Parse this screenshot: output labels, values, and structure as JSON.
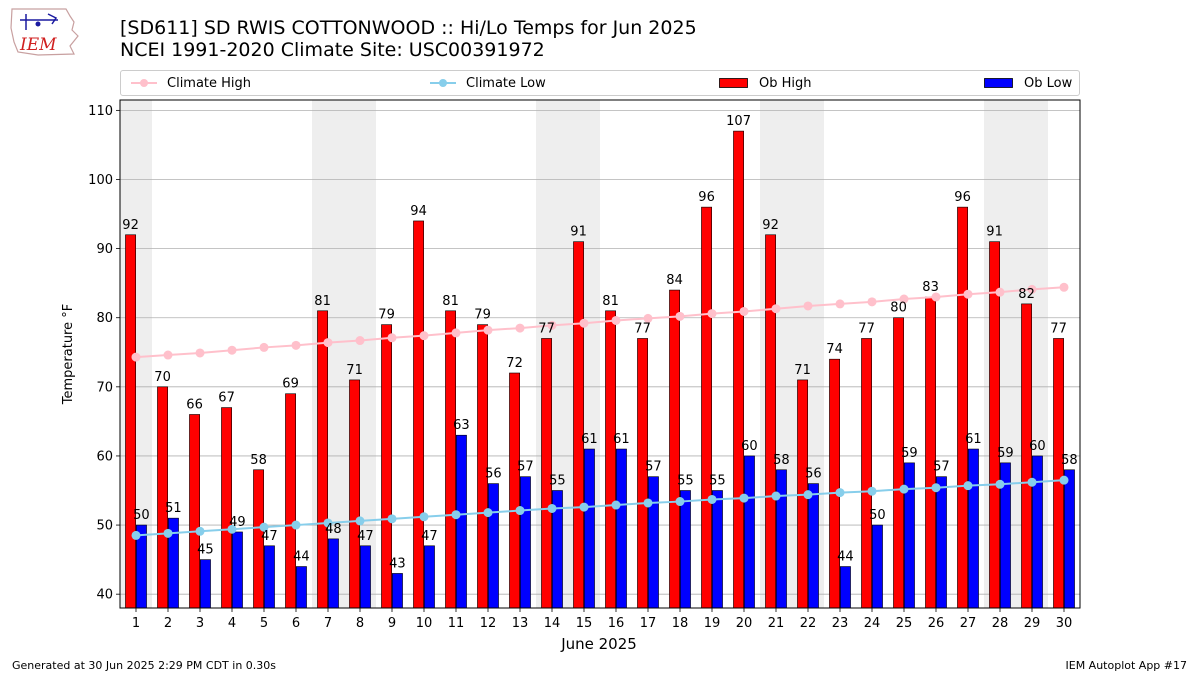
{
  "header": {
    "logo_text": "IEM",
    "title_line1": "[SD611] SD RWIS COTTONWOOD :: Hi/Lo Temps for Jun 2025",
    "title_line2": "NCEI 1991-2020 Climate Site: USC00391972"
  },
  "legend": {
    "items": [
      {
        "label": "Climate High",
        "kind": "line",
        "color": "#ffc0cb"
      },
      {
        "label": "Climate Low",
        "kind": "line",
        "color": "#87ceeb"
      },
      {
        "label": "Ob High",
        "kind": "bar",
        "color": "#ff0000"
      },
      {
        "label": "Ob Low",
        "kind": "bar",
        "color": "#0000ff"
      }
    ]
  },
  "footer": {
    "generated": "Generated at 30 Jun 2025 2:29 PM CDT in 0.30s",
    "app": "IEM Autoplot App #17"
  },
  "chart_data": {
    "type": "bar",
    "xlabel": "June 2025",
    "ylabel": "Temperature °F",
    "ylim": [
      38,
      111.5
    ],
    "yticks": [
      40,
      50,
      60,
      70,
      80,
      90,
      100,
      110
    ],
    "grid": "horizontal",
    "legend_position": "top",
    "weekend_shading": [
      [
        1,
        1
      ],
      [
        7,
        8
      ],
      [
        14,
        15
      ],
      [
        21,
        22
      ],
      [
        28,
        29
      ]
    ],
    "categories": [
      "1",
      "2",
      "3",
      "4",
      "5",
      "6",
      "7",
      "8",
      "9",
      "10",
      "11",
      "12",
      "13",
      "14",
      "15",
      "16",
      "17",
      "18",
      "19",
      "20",
      "21",
      "22",
      "23",
      "24",
      "25",
      "26",
      "27",
      "28",
      "29",
      "30"
    ],
    "series": [
      {
        "name": "Ob High",
        "kind": "bar",
        "color": "#ff0000",
        "values": [
          92,
          70,
          66,
          67,
          58,
          69,
          81,
          71,
          79,
          94,
          81,
          79,
          72,
          77,
          91,
          81,
          77,
          84,
          96,
          107,
          92,
          71,
          74,
          77,
          80,
          83,
          96,
          91,
          82,
          77
        ]
      },
      {
        "name": "Ob Low",
        "kind": "bar",
        "color": "#0000ff",
        "values": [
          50,
          51,
          45,
          49,
          47,
          44,
          48,
          47,
          43,
          47,
          63,
          56,
          57,
          55,
          61,
          61,
          57,
          55,
          55,
          60,
          58,
          56,
          44,
          50,
          59,
          57,
          61,
          59,
          60,
          58
        ]
      },
      {
        "name": "Climate High",
        "kind": "line",
        "color": "#ffc0cb",
        "values": [
          74.3,
          74.6,
          74.9,
          75.3,
          75.7,
          76.0,
          76.4,
          76.7,
          77.1,
          77.4,
          77.8,
          78.2,
          78.5,
          78.9,
          79.2,
          79.6,
          79.9,
          80.2,
          80.6,
          80.9,
          81.3,
          81.7,
          82.0,
          82.3,
          82.7,
          83.0,
          83.4,
          83.7,
          84.1,
          84.4
        ]
      },
      {
        "name": "Climate Low",
        "kind": "line",
        "color": "#87ceeb",
        "values": [
          48.5,
          48.8,
          49.1,
          49.4,
          49.7,
          50.0,
          50.3,
          50.6,
          50.9,
          51.2,
          51.5,
          51.8,
          52.1,
          52.4,
          52.6,
          52.9,
          53.2,
          53.4,
          53.7,
          53.9,
          54.2,
          54.4,
          54.7,
          54.9,
          55.2,
          55.4,
          55.7,
          55.9,
          56.2,
          56.5
        ]
      }
    ]
  }
}
